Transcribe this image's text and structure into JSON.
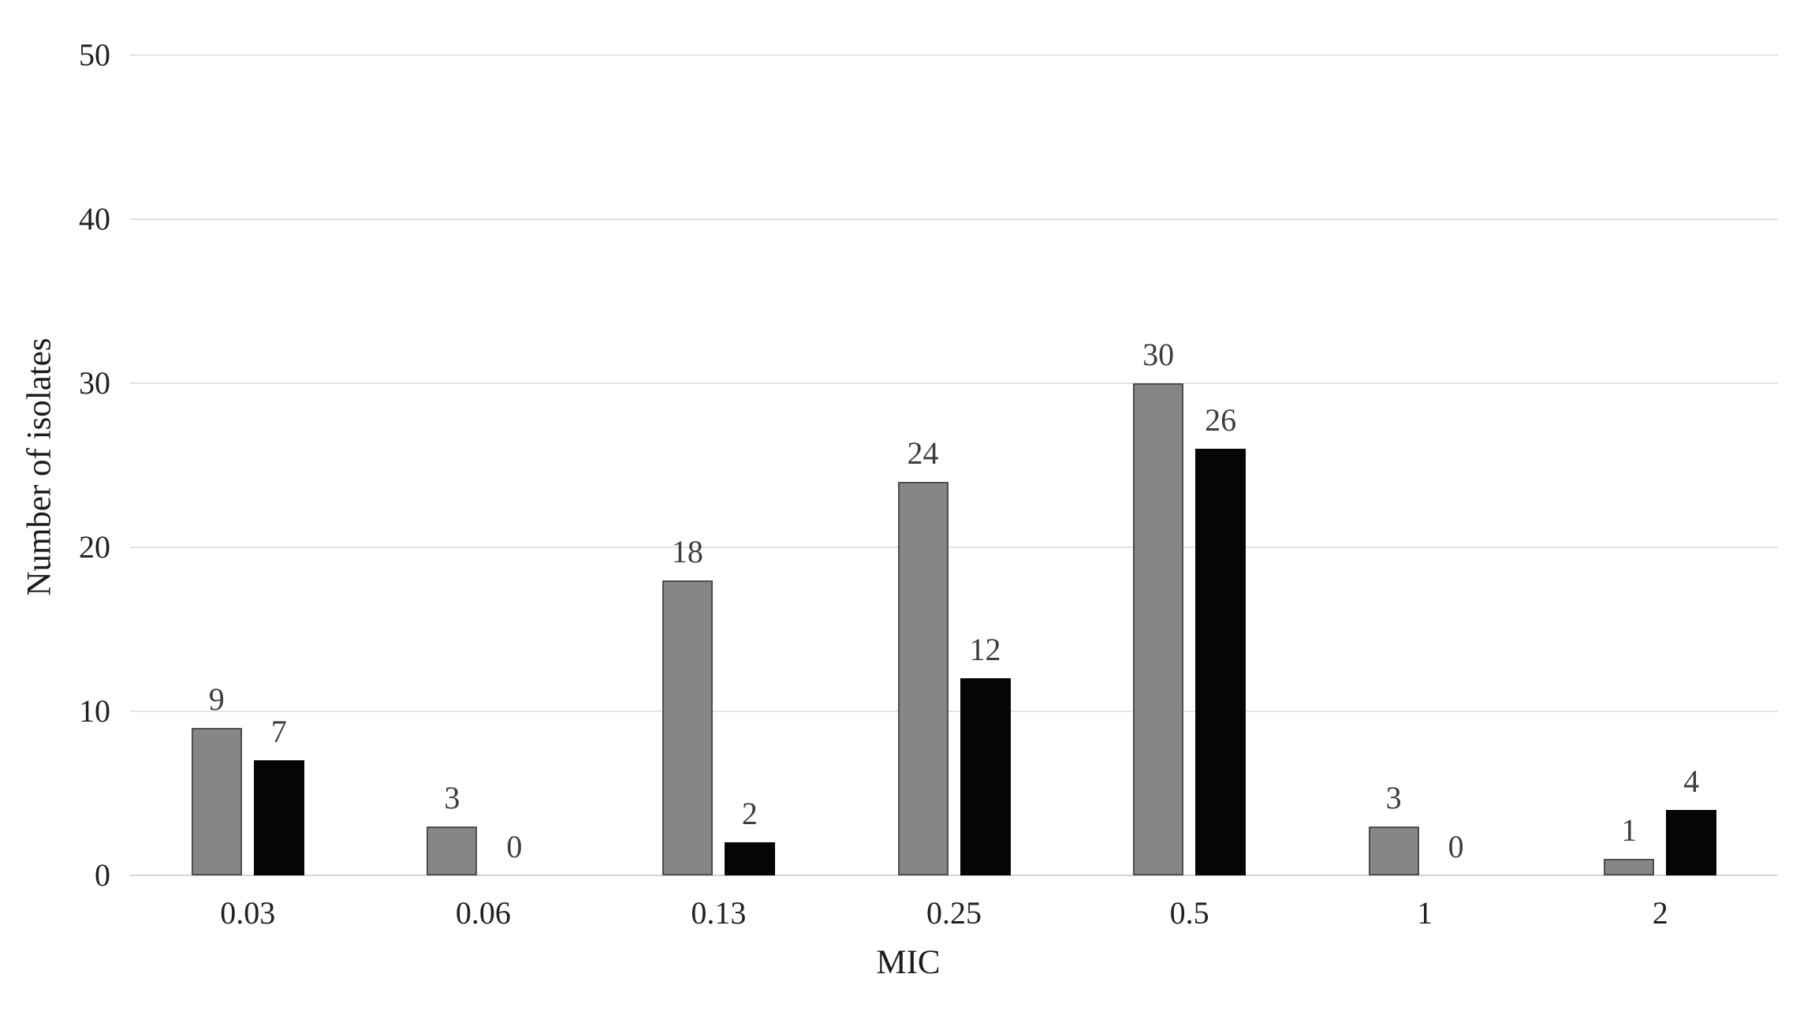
{
  "chart_data": {
    "type": "bar",
    "categories": [
      "0.03",
      "0.06",
      "0.13",
      "0.25",
      "0.5",
      "1",
      "2"
    ],
    "series": [
      {
        "name": "gray-series",
        "fill": "#868686",
        "border": "#4e4e4e",
        "values": [
          9,
          3,
          18,
          24,
          30,
          3,
          1
        ]
      },
      {
        "name": "black-series",
        "fill": "#050505",
        "border": "#050505",
        "values": [
          7,
          0,
          2,
          12,
          26,
          0,
          4
        ]
      }
    ],
    "title": "",
    "xlabel": "MIC",
    "ylabel": "Number of isolates",
    "ylim": [
      0,
      50
    ],
    "yticks": [
      0,
      10,
      20,
      30,
      40,
      50
    ],
    "grid": "horizontal",
    "legend_position": "none",
    "data_labels": true
  },
  "colors": {
    "background": "#ffffff",
    "gridline": "#e4e4e4",
    "axis_line": "#d5d5d5",
    "tick_text": "#212121",
    "data_label_text": "#3d3d3d"
  }
}
